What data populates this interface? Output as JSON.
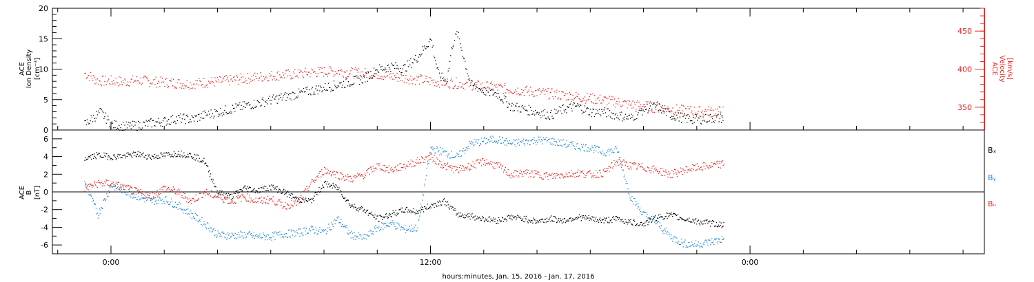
{
  "colors": {
    "black": "#000000",
    "red": "#e8231f",
    "blue": "#1f86d8"
  },
  "xlabel": "hours:minutes, Jan. 15, 2016 - Jan. 17, 2016",
  "chart_data": [
    {
      "type": "scatter",
      "panel": "top",
      "ylabel_lines": [
        "ACE",
        "Ion Density",
        "[cm⁻³]"
      ],
      "ylim": [
        0,
        20
      ],
      "yticks": [
        "0",
        "5",
        "10",
        "15",
        "20"
      ],
      "y2label_lines": [
        "ACE",
        "Velocity",
        "[km/s]"
      ],
      "y2lim": [
        320,
        480
      ],
      "y2ticks": [
        "350",
        "400",
        "450"
      ],
      "xrange_hours": [
        -2.2,
        32.8
      ],
      "xticks": [
        "0:00",
        "12:00",
        "0:00"
      ],
      "series": [
        {
          "key": "density",
          "color": "black",
          "axis": "left",
          "x": [
            -1.0,
            -0.7,
            -0.4,
            0.0,
            0.5,
            1.0,
            1.5,
            2.0,
            2.5,
            3.0,
            3.5,
            4.0,
            4.5,
            5.0,
            5.5,
            6.0,
            6.5,
            7.0,
            7.5,
            8.0,
            8.5,
            9.0,
            9.5,
            10.0,
            10.5,
            11.0,
            11.5,
            12.0,
            12.3,
            12.6,
            12.8,
            13.0,
            13.5,
            14.0,
            14.5,
            15.0,
            15.5,
            16.0,
            16.5,
            17.0,
            17.5,
            18.0,
            18.5,
            19.0,
            19.5,
            20.0,
            20.5,
            21.0,
            21.5,
            22.0,
            22.5,
            23.0
          ],
          "y": [
            1.0,
            2.0,
            3.0,
            1.0,
            0.6,
            0.8,
            1.2,
            1.5,
            2.0,
            1.8,
            2.5,
            3.0,
            3.5,
            4.0,
            4.5,
            5.0,
            5.5,
            6.0,
            6.5,
            7.0,
            7.5,
            8.0,
            8.5,
            10.0,
            10.5,
            10.2,
            12.0,
            15.0,
            9.0,
            8.0,
            14.0,
            16.0,
            7.5,
            6.5,
            6.0,
            4.0,
            3.5,
            3.0,
            2.5,
            3.5,
            4.0,
            3.0,
            3.0,
            2.5,
            2.0,
            3.5,
            4.0,
            2.5,
            2.0,
            1.8,
            2.0,
            2.0
          ]
        },
        {
          "key": "velocity",
          "color": "red",
          "axis": "right",
          "x": [
            -1.0,
            -0.5,
            0.0,
            0.5,
            1.0,
            1.5,
            2.0,
            2.5,
            3.0,
            3.5,
            4.0,
            4.5,
            5.0,
            5.5,
            6.0,
            6.5,
            7.0,
            7.5,
            8.0,
            8.5,
            9.0,
            9.5,
            10.0,
            10.5,
            11.0,
            11.5,
            12.0,
            12.5,
            13.0,
            13.5,
            14.0,
            14.5,
            15.0,
            15.5,
            16.0,
            16.5,
            17.0,
            17.5,
            18.0,
            18.5,
            19.0,
            19.5,
            20.0,
            20.5,
            21.0,
            21.5,
            22.0,
            22.5,
            23.0
          ],
          "y": [
            395,
            385,
            385,
            384,
            386,
            384,
            383,
            382,
            381,
            383,
            384,
            386,
            388,
            390,
            392,
            393,
            394,
            396,
            397,
            398,
            396,
            395,
            394,
            391,
            389,
            387,
            385,
            383,
            382,
            380,
            378,
            376,
            374,
            372,
            370,
            368,
            366,
            364,
            362,
            360,
            357,
            354,
            352,
            350,
            348,
            346,
            345,
            345,
            345
          ]
        }
      ]
    },
    {
      "type": "scatter",
      "panel": "bottom",
      "ylabel_lines": [
        "ACE",
        "B",
        "[nT]"
      ],
      "ylim": [
        -7,
        7
      ],
      "yticks": [
        "-6",
        "-4",
        "-2",
        "0",
        "2",
        "4",
        "6"
      ],
      "xrange_hours": [
        -2.2,
        32.8
      ],
      "xticks": [
        "0:00",
        "12:00",
        "0:00"
      ],
      "legend": [
        "Bₓ",
        "Bᵧ",
        "Bᵤ"
      ],
      "series": [
        {
          "key": "bx",
          "color": "black",
          "x": [
            -1.0,
            -0.5,
            0.0,
            0.5,
            1.0,
            1.5,
            2.0,
            2.5,
            3.0,
            3.5,
            4.0,
            4.5,
            5.0,
            5.5,
            6.0,
            6.5,
            7.0,
            7.5,
            8.0,
            8.5,
            9.0,
            9.5,
            10.0,
            10.5,
            11.0,
            11.5,
            12.0,
            12.5,
            13.0,
            13.5,
            14.0,
            14.5,
            15.0,
            15.5,
            16.0,
            16.5,
            17.0,
            17.5,
            18.0,
            18.5,
            19.0,
            19.5,
            20.0,
            20.5,
            21.0,
            21.5,
            22.0,
            22.5,
            23.0
          ],
          "y": [
            3.8,
            4.2,
            4.0,
            4.1,
            4.3,
            4.0,
            4.2,
            4.4,
            4.2,
            3.5,
            0.0,
            -0.5,
            0.5,
            0.2,
            0.6,
            0.0,
            -0.8,
            -1.0,
            1.0,
            0.5,
            -1.5,
            -2.0,
            -3.0,
            -2.5,
            -2.0,
            -2.2,
            -1.5,
            -1.0,
            -2.5,
            -2.7,
            -3.0,
            -3.2,
            -2.8,
            -3.0,
            -3.3,
            -3.0,
            -3.2,
            -2.8,
            -3.0,
            -3.2,
            -3.0,
            -3.4,
            -3.6,
            -2.8,
            -2.6,
            -3.0,
            -3.3,
            -3.5,
            -3.7
          ]
        },
        {
          "key": "by",
          "color": "blue",
          "x": [
            -1.0,
            -0.5,
            0.0,
            0.5,
            1.0,
            1.5,
            2.0,
            2.5,
            3.0,
            3.5,
            4.0,
            4.5,
            5.0,
            5.5,
            6.0,
            6.5,
            7.0,
            7.5,
            8.0,
            8.5,
            9.0,
            9.5,
            10.0,
            10.5,
            11.0,
            11.5,
            12.0,
            12.5,
            13.0,
            13.5,
            14.0,
            14.5,
            15.0,
            15.5,
            16.0,
            16.5,
            17.0,
            17.5,
            18.0,
            18.5,
            19.0,
            19.5,
            20.0,
            20.5,
            21.0,
            21.5,
            22.0,
            22.5,
            23.0
          ],
          "y": [
            1.0,
            -2.5,
            0.8,
            0.2,
            -0.5,
            -1.0,
            -0.8,
            -1.5,
            -2.5,
            -3.5,
            -4.8,
            -4.9,
            -4.8,
            -5.0,
            -5.0,
            -4.7,
            -4.6,
            -4.2,
            -4.5,
            -3.0,
            -4.8,
            -5.2,
            -4.0,
            -3.5,
            -4.2,
            -4.0,
            5.0,
            4.5,
            4.0,
            5.5,
            5.8,
            6.0,
            5.5,
            5.7,
            5.9,
            5.8,
            5.5,
            5.2,
            5.0,
            4.5,
            4.8,
            -0.5,
            -2.5,
            -3.5,
            -5.0,
            -5.8,
            -5.9,
            -5.6,
            -5.3
          ]
        },
        {
          "key": "bz",
          "color": "red",
          "x": [
            -1.0,
            -0.5,
            0.0,
            0.5,
            1.0,
            1.5,
            2.0,
            2.5,
            3.0,
            3.5,
            4.0,
            4.5,
            5.0,
            5.5,
            6.0,
            6.5,
            7.0,
            7.5,
            8.0,
            8.5,
            9.0,
            9.5,
            10.0,
            10.5,
            11.0,
            11.5,
            12.0,
            12.5,
            13.0,
            13.5,
            14.0,
            14.5,
            15.0,
            15.5,
            16.0,
            16.5,
            17.0,
            17.5,
            18.0,
            18.5,
            19.0,
            19.5,
            20.0,
            20.5,
            21.0,
            21.5,
            22.0,
            22.5,
            23.0
          ],
          "y": [
            0.5,
            1.0,
            1.0,
            0.5,
            0.0,
            -0.5,
            0.5,
            0.0,
            -1.0,
            0.0,
            -0.5,
            -1.0,
            -0.5,
            -1.0,
            -0.8,
            -1.5,
            -1.2,
            1.0,
            2.5,
            2.0,
            1.5,
            2.0,
            3.0,
            2.5,
            3.0,
            3.5,
            4.0,
            3.0,
            2.5,
            3.0,
            3.5,
            3.0,
            2.0,
            2.2,
            2.0,
            1.8,
            2.0,
            2.2,
            2.0,
            2.2,
            3.5,
            3.0,
            2.8,
            2.5,
            2.0,
            2.5,
            2.8,
            3.0,
            3.2
          ]
        }
      ]
    }
  ]
}
